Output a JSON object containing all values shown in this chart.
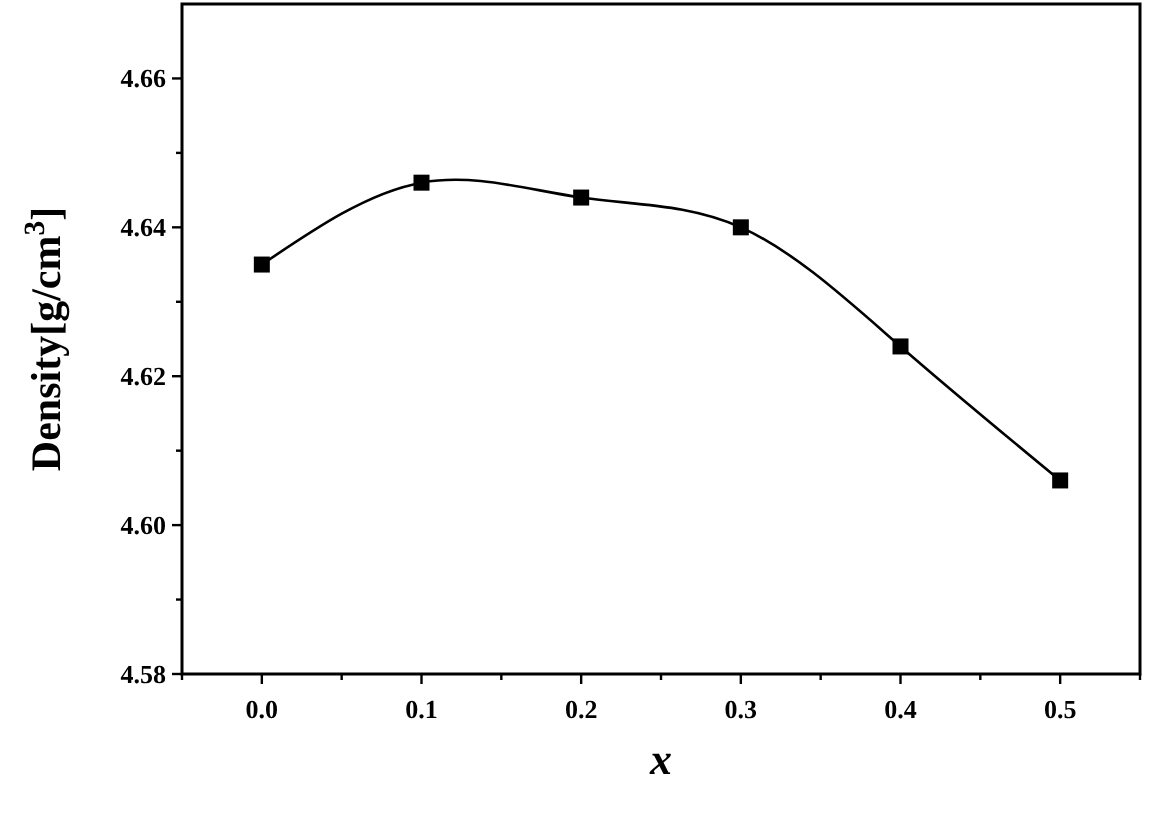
{
  "chart_data": {
    "type": "line",
    "xlabel": "x",
    "ylabel": "Density[g/cm$^{3}$]",
    "x": [
      0,
      0.1,
      0.2,
      0.3,
      0.4,
      0.5
    ],
    "series": [
      {
        "color": "#000000",
        "values": [
          4.635,
          4.646,
          4.644,
          4.64,
          4.624,
          4.606
        ]
      }
    ],
    "marker": "square",
    "line_style": "solid",
    "grid": false,
    "xlim": [
      -0.05,
      0.55
    ],
    "ylim": [
      4.58,
      4.67
    ],
    "xticks": [
      {
        "value": -0.05,
        "label": null
      },
      {
        "value": 0,
        "label": "0.0"
      },
      {
        "value": 0.05,
        "label": null
      },
      0.1,
      {
        "value": 0.15,
        "label": null
      },
      0.2,
      {
        "value": 0.25,
        "label": null
      },
      0.3,
      {
        "value": 0.35,
        "label": null
      },
      0.4,
      {
        "value": 0.45,
        "label": null
      },
      0.5,
      {
        "value": 0.55,
        "label": null
      }
    ],
    "yticks": [
      {
        "value": 4.58,
        "label": "4.58"
      },
      {
        "value": 4.59,
        "label": null
      },
      {
        "value": 4.6,
        "label": "4.60"
      },
      {
        "value": 4.61,
        "label": null
      },
      {
        "value": 4.62,
        "label": "4.62"
      },
      {
        "value": 4.63,
        "label": null
      },
      {
        "value": 4.64,
        "label": "4.64"
      },
      {
        "value": 4.65,
        "label": null
      },
      {
        "value": 4.66,
        "label": "4.66"
      }
    ]
  }
}
